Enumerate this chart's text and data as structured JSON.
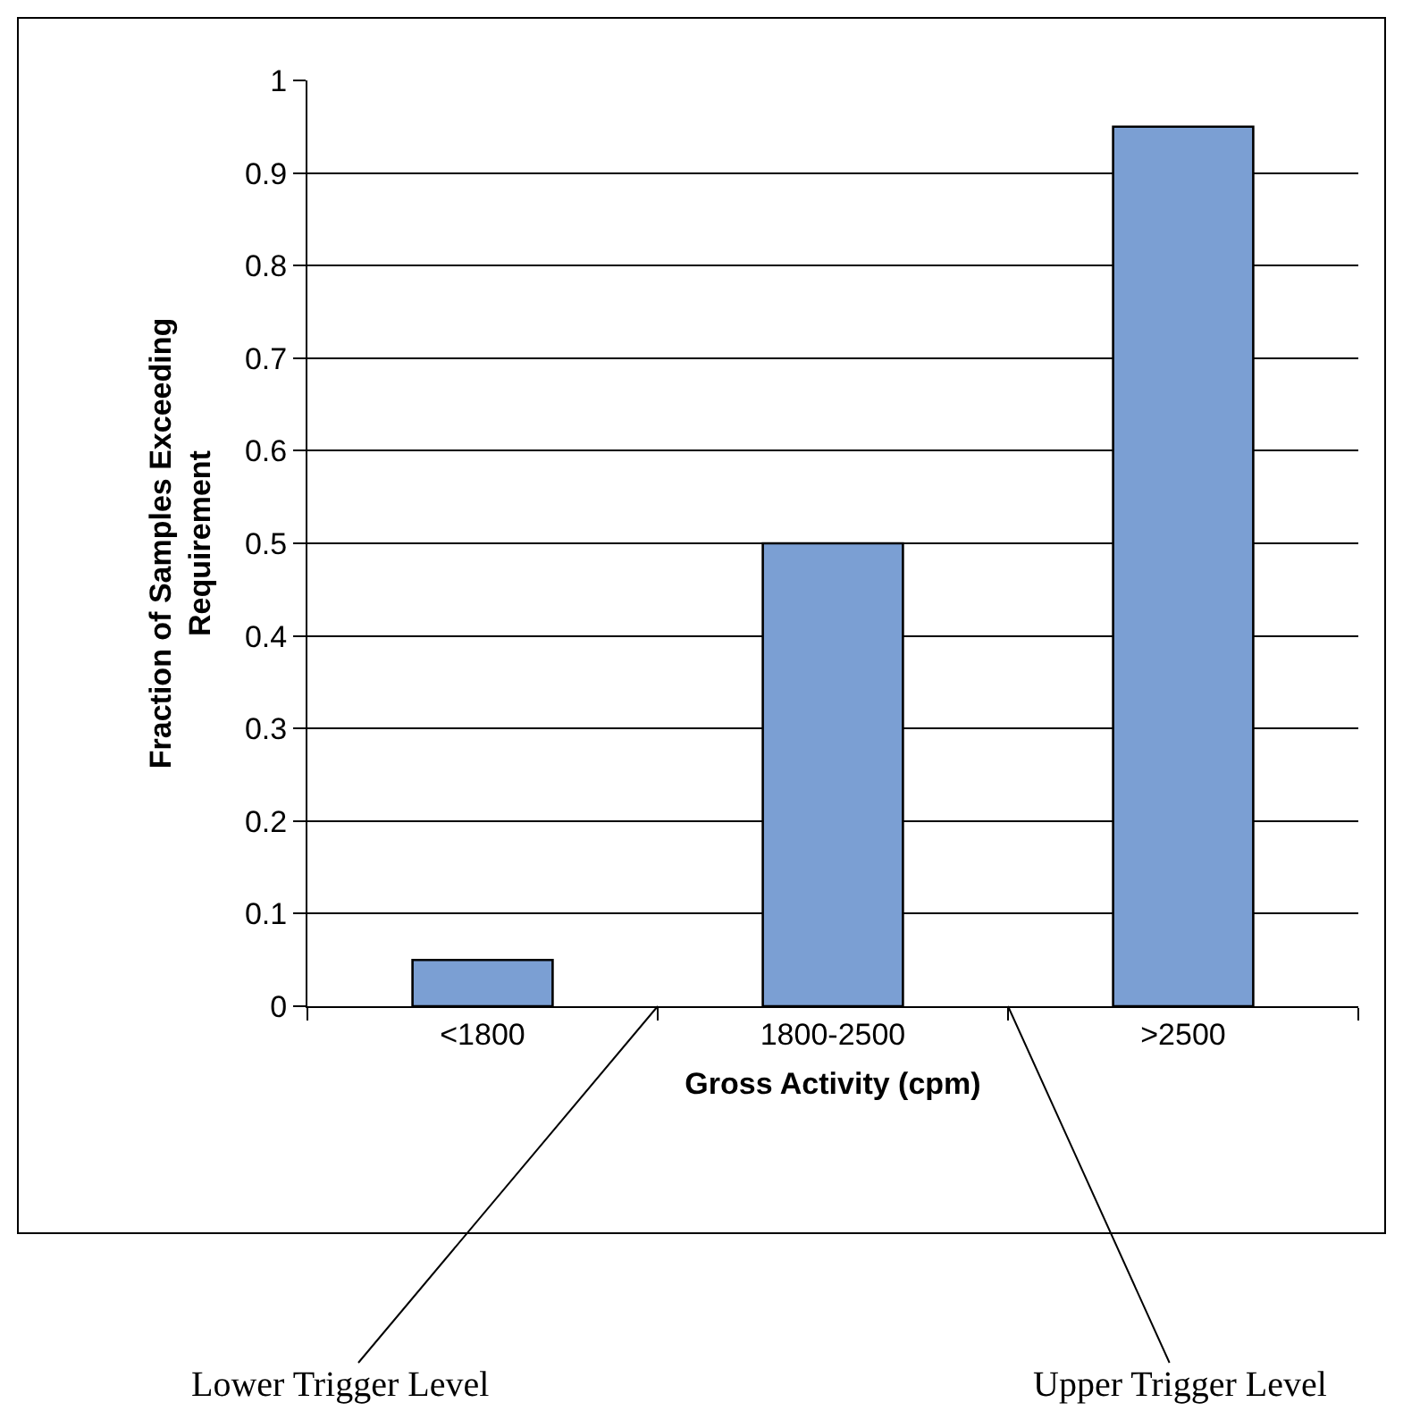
{
  "chart_data": {
    "type": "bar",
    "xlabel": "Gross Activity (cpm)",
    "ylabel": "Fraction of Samples Exceeding Requirement",
    "categories": [
      "<1800",
      "1800-2500",
      ">2500"
    ],
    "values": [
      0.05,
      0.5,
      0.95
    ],
    "color": "#7b9fd3",
    "ylim": [
      0,
      1
    ],
    "yticks": [
      0,
      0.1,
      0.2,
      0.3,
      0.4,
      0.5,
      0.6,
      0.7,
      0.8,
      0.9,
      1
    ],
    "grid": "y",
    "annotations": [
      "Lower Trigger Level",
      "Upper Trigger Level"
    ]
  }
}
